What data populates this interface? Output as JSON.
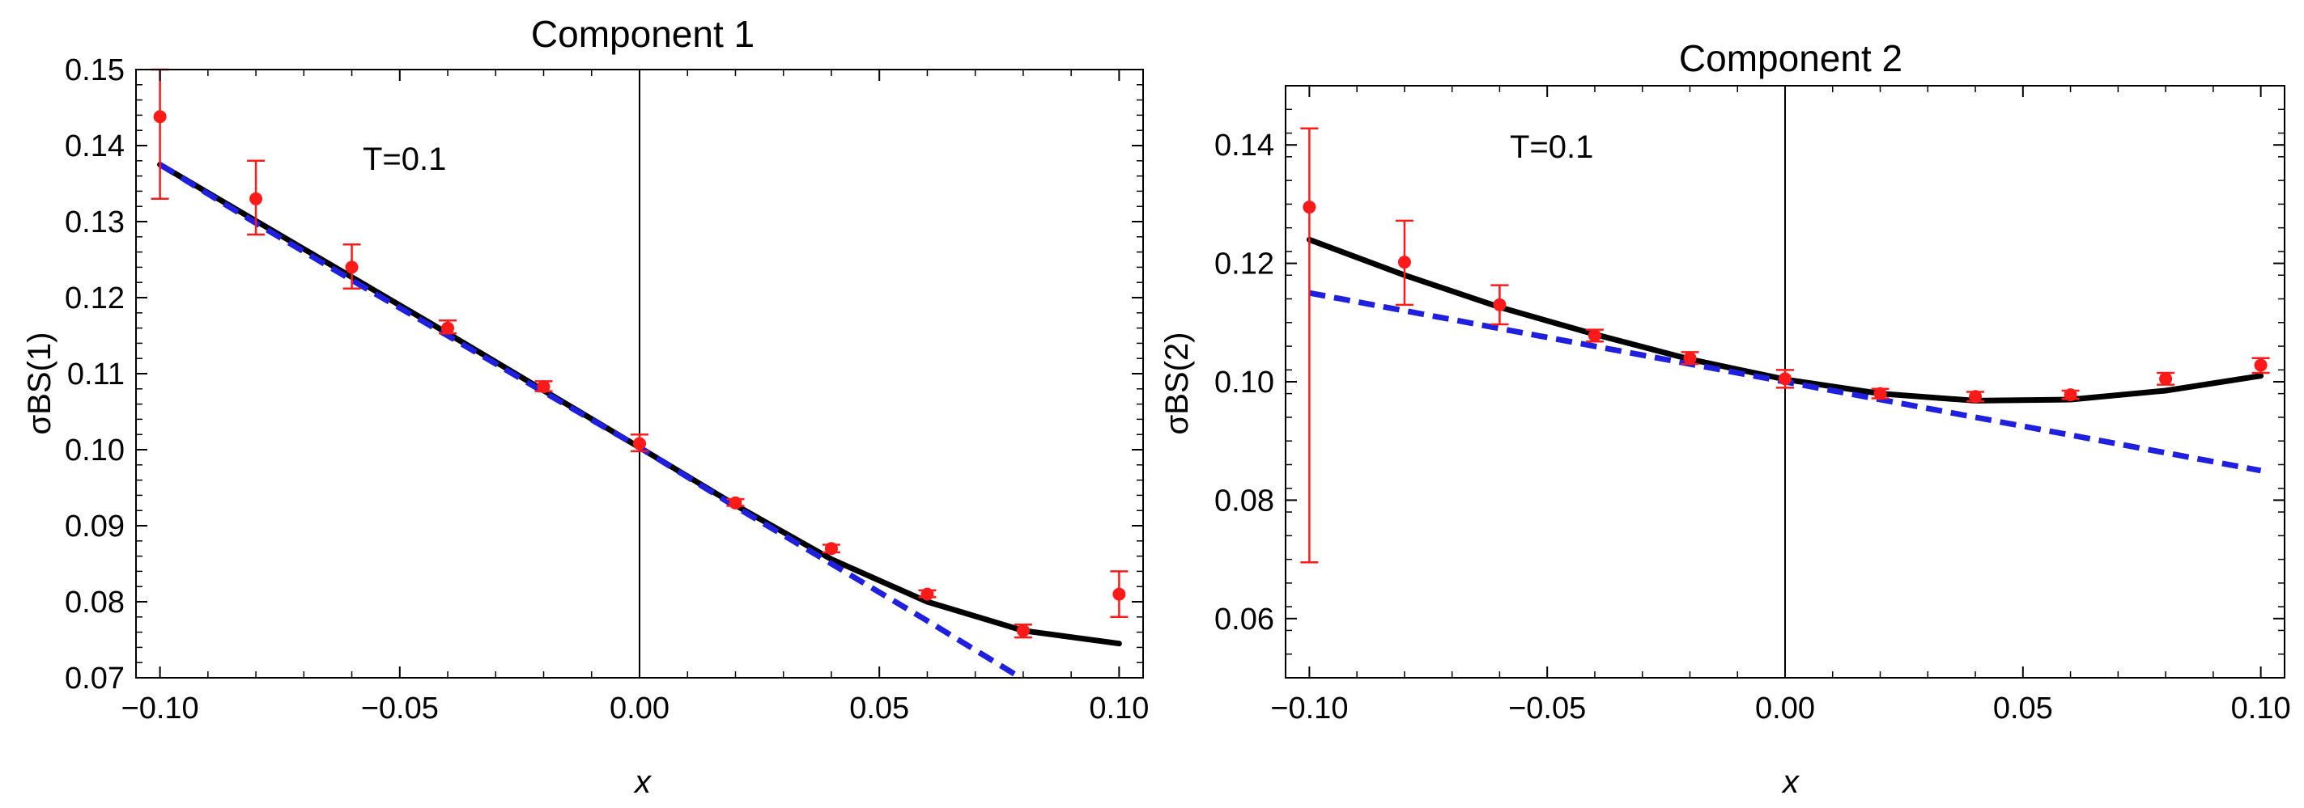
{
  "chart_data": [
    {
      "type": "line",
      "title": "Component 1",
      "xlabel": "x",
      "ylabel": "σBS(1)",
      "annotation": "T=0.1",
      "xlim": [
        -0.105,
        0.105
      ],
      "ylim": [
        0.07,
        0.15
      ],
      "xticks": [
        -0.1,
        -0.05,
        0.0,
        0.05,
        0.1
      ],
      "xtick_labels": [
        "−0.10",
        "−0.05",
        "0.00",
        "0.05",
        "0.10"
      ],
      "yticks": [
        0.07,
        0.08,
        0.09,
        0.1,
        0.11,
        0.12,
        0.13,
        0.14,
        0.15
      ],
      "ytick_labels": [
        "0.07",
        "0.08",
        "0.09",
        "0.10",
        "0.11",
        "0.12",
        "0.13",
        "0.14",
        "0.15"
      ],
      "series": [
        {
          "name": "solid-curve",
          "style": "solid",
          "color": "#000000",
          "x": [
            -0.1,
            -0.08,
            -0.06,
            -0.04,
            -0.02,
            0.0,
            0.02,
            0.04,
            0.06,
            0.08,
            0.1
          ],
          "y": [
            0.1375,
            0.1301,
            0.1227,
            0.1153,
            0.1078,
            0.1003,
            0.0927,
            0.0856,
            0.08,
            0.0762,
            0.0745
          ]
        },
        {
          "name": "dashed-line",
          "style": "dashed",
          "color": "#1f1fe0",
          "x": [
            -0.1,
            -0.08,
            -0.06,
            -0.04,
            -0.02,
            0.0,
            0.02,
            0.04,
            0.06,
            0.08
          ],
          "y": [
            0.1375,
            0.1298,
            0.1223,
            0.115,
            0.1076,
            0.1003,
            0.0925,
            0.085,
            0.0775,
            0.0698
          ]
        },
        {
          "name": "data-points",
          "style": "errorbar",
          "color": "#ff1a1a",
          "x": [
            -0.1,
            -0.08,
            -0.06,
            -0.04,
            -0.02,
            0.0,
            0.02,
            0.04,
            0.06,
            0.08,
            0.1
          ],
          "y": [
            0.1438,
            0.133,
            0.124,
            0.116,
            0.1083,
            0.1008,
            0.093,
            0.087,
            0.081,
            0.0762,
            0.081
          ],
          "err_low": [
            0.133,
            0.1283,
            0.1212,
            0.1153,
            0.1077,
            0.0998,
            0.0926,
            0.0865,
            0.0806,
            0.0753,
            0.078
          ],
          "err_high": [
            0.15,
            0.138,
            0.127,
            0.117,
            0.109,
            0.102,
            0.0935,
            0.0875,
            0.0815,
            0.077,
            0.084
          ]
        }
      ]
    },
    {
      "type": "line",
      "title": "Component 2",
      "xlabel": "x",
      "ylabel": "σBS(2)",
      "annotation": "T=0.1",
      "xlim": [
        -0.105,
        0.105
      ],
      "ylim": [
        0.05,
        0.15
      ],
      "xticks": [
        -0.1,
        -0.05,
        0.0,
        0.05,
        0.1
      ],
      "xtick_labels": [
        "−0.10",
        "−0.05",
        "0.00",
        "0.05",
        "0.10"
      ],
      "yticks": [
        0.06,
        0.08,
        0.1,
        0.12,
        0.14
      ],
      "ytick_labels": [
        "0.06",
        "0.08",
        "0.10",
        "0.12",
        "0.14"
      ],
      "series": [
        {
          "name": "solid-curve",
          "style": "solid",
          "color": "#000000",
          "x": [
            -0.1,
            -0.08,
            -0.06,
            -0.04,
            -0.02,
            0.0,
            0.02,
            0.04,
            0.06,
            0.08,
            0.1
          ],
          "y": [
            0.124,
            0.118,
            0.1126,
            0.108,
            0.1038,
            0.1004,
            0.098,
            0.0968,
            0.097,
            0.0985,
            0.101
          ]
        },
        {
          "name": "dashed-line",
          "style": "dashed",
          "color": "#1f1fe0",
          "x": [
            -0.1,
            -0.05,
            0.0,
            0.05,
            0.1
          ],
          "y": [
            0.115,
            0.1075,
            0.1,
            0.0925,
            0.085
          ]
        },
        {
          "name": "data-points",
          "style": "errorbar",
          "color": "#ff1a1a",
          "x": [
            -0.1,
            -0.08,
            -0.06,
            -0.04,
            -0.02,
            0.0,
            0.02,
            0.04,
            0.06,
            0.08,
            0.1
          ],
          "y": [
            0.1295,
            0.1202,
            0.113,
            0.1078,
            0.104,
            0.1005,
            0.098,
            0.0975,
            0.0978,
            0.1005,
            0.1028
          ],
          "err_low": [
            0.0695,
            0.113,
            0.1097,
            0.1068,
            0.103,
            0.099,
            0.0972,
            0.0967,
            0.0971,
            0.0995,
            0.1015
          ],
          "err_high": [
            0.1428,
            0.1272,
            0.1163,
            0.1088,
            0.105,
            0.102,
            0.0988,
            0.0983,
            0.0985,
            0.1015,
            0.104
          ]
        }
      ]
    }
  ]
}
